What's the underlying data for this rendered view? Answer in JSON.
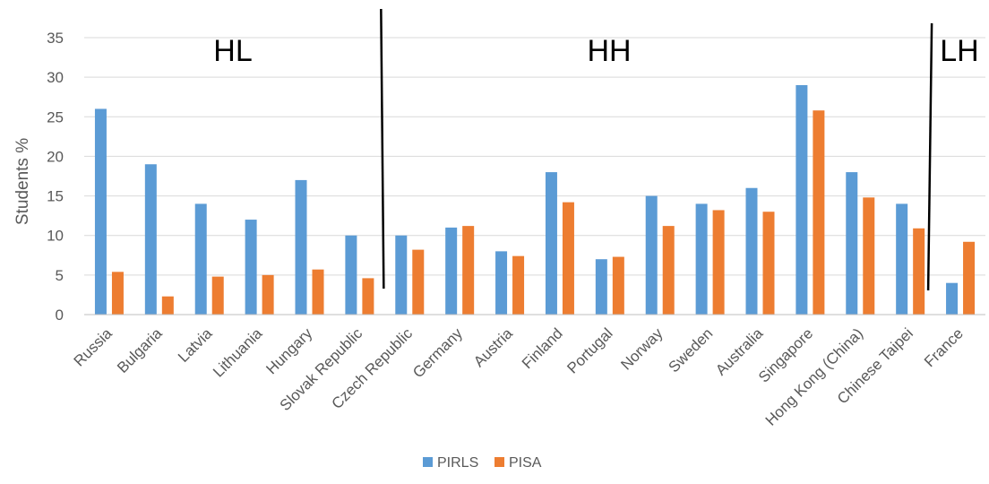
{
  "chart_data": {
    "type": "bar",
    "title": "",
    "xlabel": "",
    "ylabel": "Students %",
    "ylim": [
      0,
      35
    ],
    "yticks": [
      0,
      5,
      10,
      15,
      20,
      25,
      30,
      35
    ],
    "grid": true,
    "legend_position": "bottom",
    "categories": [
      "Russia",
      "Bulgaria",
      "Latvia",
      "Lithuania",
      "Hungary",
      "Slovak Republic",
      "Czech Republic",
      "Germany",
      "Austria",
      "Finland",
      "Portugal",
      "Norway",
      "Sweden",
      "Australia",
      "Singapore",
      "Hong Kong (China)",
      "Chinese Taipei",
      "France"
    ],
    "series": [
      {
        "name": "PIRLS",
        "color": "#5B9BD5",
        "values": [
          26,
          19,
          14,
          12,
          17,
          10,
          10,
          11,
          8,
          18,
          7,
          15,
          14,
          16,
          29,
          18,
          14,
          4
        ]
      },
      {
        "name": "PISA",
        "color": "#ED7D31",
        "values": [
          5.4,
          2.3,
          4.8,
          5.0,
          5.7,
          4.6,
          8.2,
          11.2,
          7.4,
          14.2,
          7.3,
          11.2,
          13.2,
          13.0,
          25.8,
          14.8,
          10.9,
          9.2
        ]
      }
    ],
    "annotations": [
      {
        "text": "HL"
      },
      {
        "text": "HH"
      },
      {
        "text": "LH"
      }
    ],
    "dividers": [
      {
        "between": [
          "Slovak Republic",
          "Czech Republic"
        ]
      },
      {
        "between": [
          "Chinese Taipei",
          "France"
        ]
      }
    ]
  }
}
